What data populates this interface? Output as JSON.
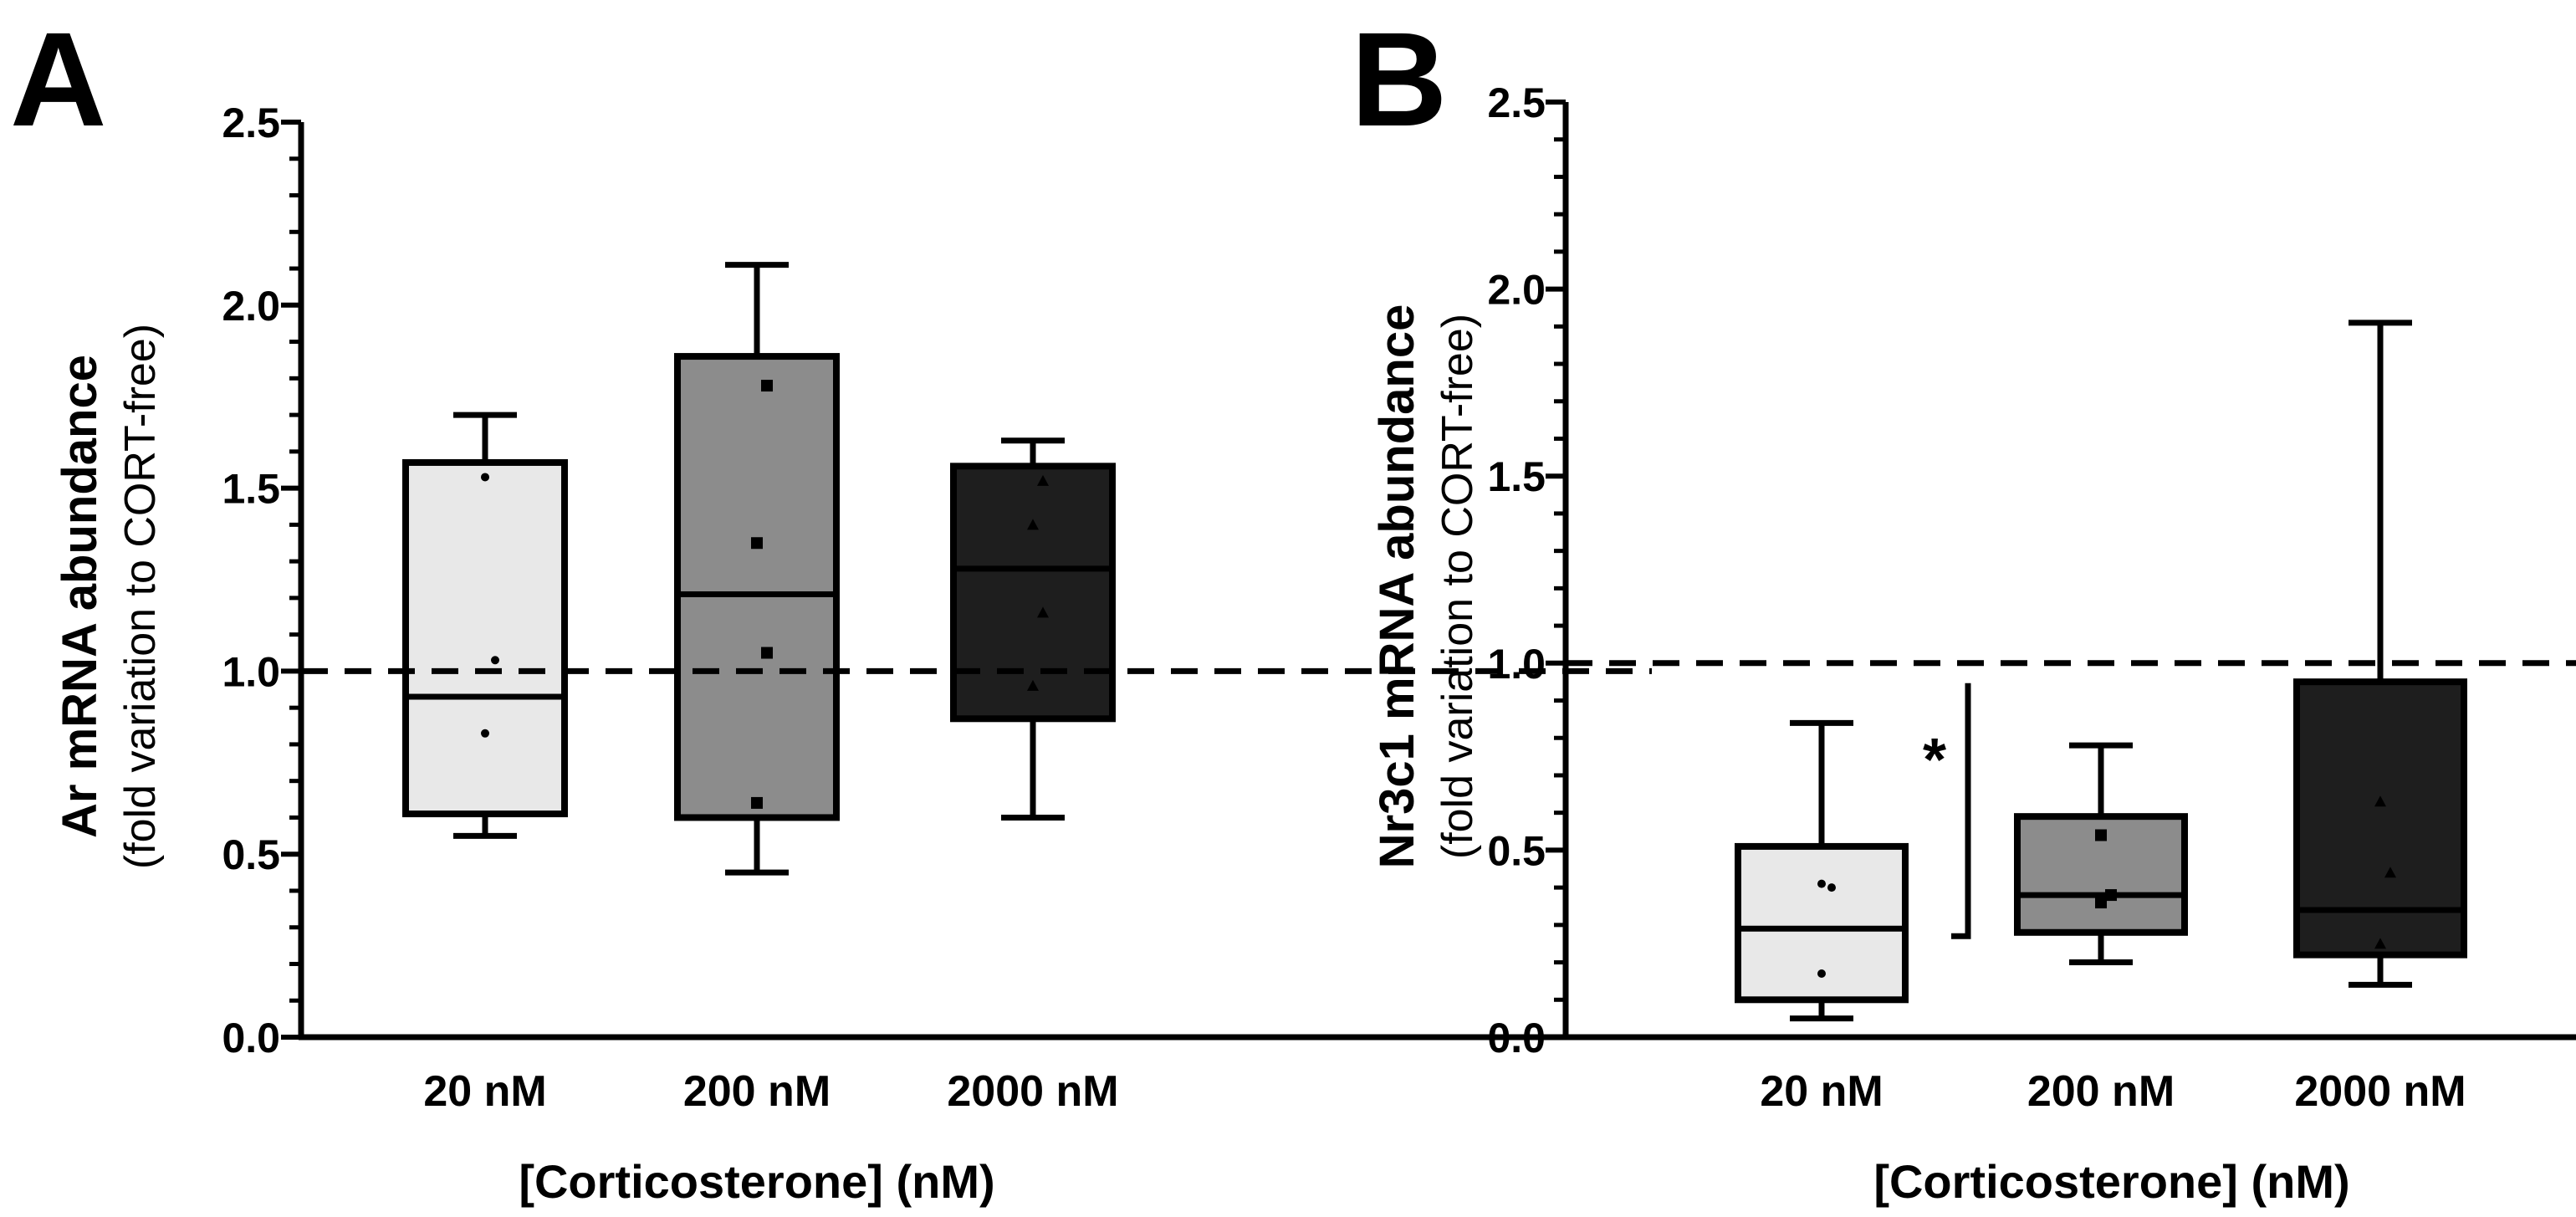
{
  "chart_data": [
    {
      "type": "box",
      "panel_label": "A",
      "title": "",
      "ylabel": "Ar mRNA abundance",
      "ylabel_sub": "(fold variation to CORT-free)",
      "xlabel": "[Corticosterone] (nM)",
      "ylim": [
        0,
        2.5
      ],
      "yticks": [
        "0.0",
        "0.5",
        "1.0",
        "1.5",
        "2.0",
        "2.5"
      ],
      "reference_line": 1.0,
      "categories": [
        "20 nM",
        "200 nM",
        "2000 nM"
      ],
      "boxes": [
        {
          "name": "20 nM",
          "color": "#e8e8e8",
          "marker": "circle",
          "min": 0.55,
          "q1": 0.61,
          "median": 0.93,
          "q3": 1.57,
          "max": 1.7,
          "points": [
            0.83,
            1.03,
            1.53
          ]
        },
        {
          "name": "200 nM",
          "color": "#8c8c8c",
          "marker": "square",
          "min": 0.45,
          "q1": 0.6,
          "median": 1.21,
          "q3": 1.86,
          "max": 2.11,
          "points": [
            0.64,
            1.05,
            1.35,
            1.78
          ]
        },
        {
          "name": "2000 nM",
          "color": "#1e1e1e",
          "marker": "triangle",
          "min": 0.6,
          "q1": 0.87,
          "median": 1.28,
          "q3": 1.56,
          "max": 1.63,
          "points": [
            0.96,
            1.16,
            1.4,
            1.52
          ]
        }
      ],
      "significance": []
    },
    {
      "type": "box",
      "panel_label": "B",
      "title": "",
      "ylabel": "Nr3c1 mRNA abundance",
      "ylabel_sub": "(fold variation to CORT-free)",
      "xlabel": "[Corticosterone] (nM)",
      "ylim": [
        0,
        2.5
      ],
      "yticks": [
        "0.0",
        "0.5",
        "1.0",
        "1.5",
        "2.0",
        "2.5"
      ],
      "reference_line": 1.0,
      "categories": [
        "20 nM",
        "200 nM",
        "2000 nM"
      ],
      "boxes": [
        {
          "name": "20 nM",
          "color": "#e8e8e8",
          "marker": "circle",
          "min": 0.05,
          "q1": 0.1,
          "median": 0.29,
          "q3": 0.51,
          "max": 0.84,
          "points": [
            0.17,
            0.4,
            0.41
          ]
        },
        {
          "name": "200 nM",
          "color": "#8c8c8c",
          "marker": "square",
          "min": 0.2,
          "q1": 0.28,
          "median": 0.38,
          "q3": 0.59,
          "max": 0.78,
          "points": [
            0.36,
            0.38,
            0.54
          ]
        },
        {
          "name": "2000 nM",
          "color": "#1e1e1e",
          "marker": "triangle",
          "min": 0.14,
          "q1": 0.22,
          "median": 0.34,
          "q3": 0.95,
          "max": 1.91,
          "points": [
            0.25,
            0.44,
            0.63
          ]
        }
      ],
      "significance": [
        {
          "category": "20 nM",
          "label": "*",
          "at_value": 0.27,
          "top_value": 1.0
        }
      ]
    }
  ]
}
